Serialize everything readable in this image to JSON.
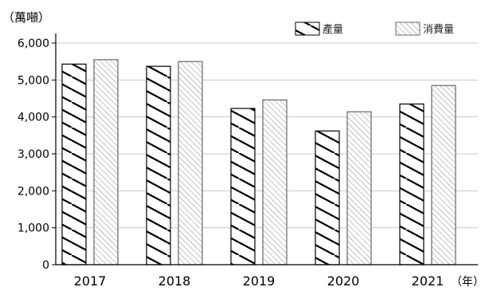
{
  "chart_data": {
    "type": "bar",
    "title": "",
    "ylabel": "（萬噸）",
    "xlabel": "（年）",
    "categories": [
      "2017",
      "2018",
      "2019",
      "2020",
      "2021"
    ],
    "series": [
      {
        "name": "產量",
        "values": [
          5430,
          5370,
          4230,
          3620,
          4350
        ],
        "pattern": "hatch-backslash"
      },
      {
        "name": "消費量",
        "values": [
          5550,
          5500,
          4460,
          4140,
          4850
        ],
        "pattern": "hatch-slash"
      }
    ],
    "ylim": [
      0,
      6000
    ],
    "yticks": [
      "0",
      "1,000",
      "2,000",
      "3,000",
      "4,000",
      "5,000",
      "6,000"
    ],
    "grid": true,
    "legend": "top-right",
    "colors": {
      "grid": "#c8c8c8",
      "axis": "#000000",
      "stroke": "#000000"
    }
  }
}
